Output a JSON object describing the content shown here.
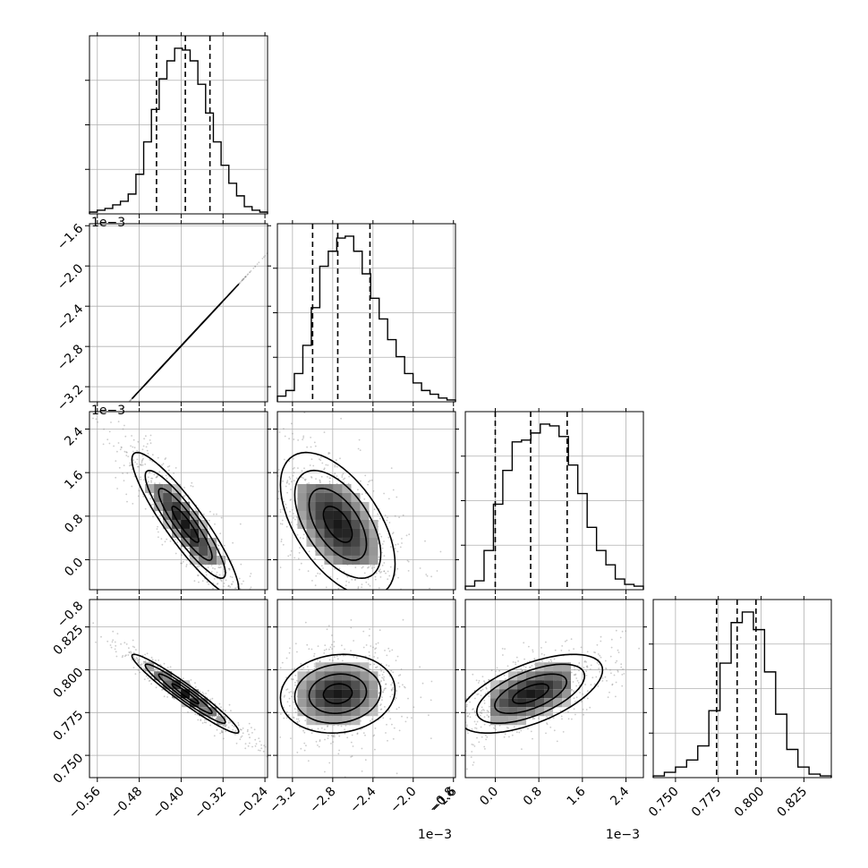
{
  "chart_data": {
    "type": "corner",
    "title": "",
    "parameters": [
      {
        "ticks": [
          -0.56,
          -0.48,
          -0.4,
          -0.32,
          -0.24
        ],
        "tick_labels": [
          "−0.56",
          "−0.48",
          "−0.40",
          "−0.32",
          "−0.24"
        ],
        "range": [
          -0.575,
          -0.235
        ],
        "offset_text": "",
        "quantiles": [
          -0.447,
          -0.392,
          -0.345
        ],
        "hist": [
          1,
          2,
          3,
          5,
          7,
          11,
          22,
          40,
          58,
          75,
          85,
          92,
          91,
          85,
          72,
          56,
          40,
          27,
          17,
          10,
          4,
          2,
          1
        ]
      },
      {
        "ticks": [
          -3.2,
          -2.8,
          -2.4,
          -2.0,
          -1.6
        ],
        "tick_labels": [
          "−3.2",
          "−2.8",
          "−2.4",
          "−2.0",
          "−1.6"
        ],
        "range": [
          -3.35,
          -1.58
        ],
        "offset_text": "1e−3",
        "quantiles": [
          -3.0,
          -2.75,
          -2.43
        ],
        "hist": [
          3,
          6,
          15,
          30,
          50,
          72,
          80,
          87,
          88,
          80,
          68,
          55,
          44,
          33,
          24,
          15,
          10,
          6,
          4,
          2,
          1
        ]
      },
      {
        "ticks": [
          -0.8,
          0.0,
          0.8,
          1.6,
          2.4
        ],
        "tick_labels": [
          "−0.8",
          "0.0",
          "0.8",
          "1.6",
          "2.4"
        ],
        "range": [
          -0.55,
          2.72
        ],
        "offset_text": "1e−3",
        "quantiles": [
          0.0,
          0.65,
          1.32
        ],
        "hist": [
          2,
          5,
          22,
          48,
          67,
          83,
          84,
          88,
          93,
          92,
          86,
          70,
          54,
          35,
          22,
          14,
          6,
          3,
          2
        ]
      },
      {
        "ticks": [
          0.75,
          0.775,
          0.8,
          0.825
        ],
        "tick_labels": [
          "0.750",
          "0.775",
          "0.800",
          "0.825"
        ],
        "range": [
          0.737,
          0.841
        ],
        "offset_text": "",
        "quantiles": [
          0.774,
          0.786,
          0.797
        ],
        "hist": [
          1,
          3,
          6,
          10,
          18,
          38,
          65,
          88,
          94,
          84,
          60,
          36,
          16,
          6,
          2,
          1
        ]
      }
    ],
    "correlation_contours": [
      [
        1,
        0
      ],
      [
        -0.9,
        -0.55,
        0
      ],
      [
        -0.96,
        0.1,
        0.6,
        0
      ]
    ],
    "colors": {
      "line": "#000000",
      "grid": "#b0b0b0",
      "scatter": "#8c8c8c",
      "background": "#ffffff"
    },
    "grid": true
  }
}
